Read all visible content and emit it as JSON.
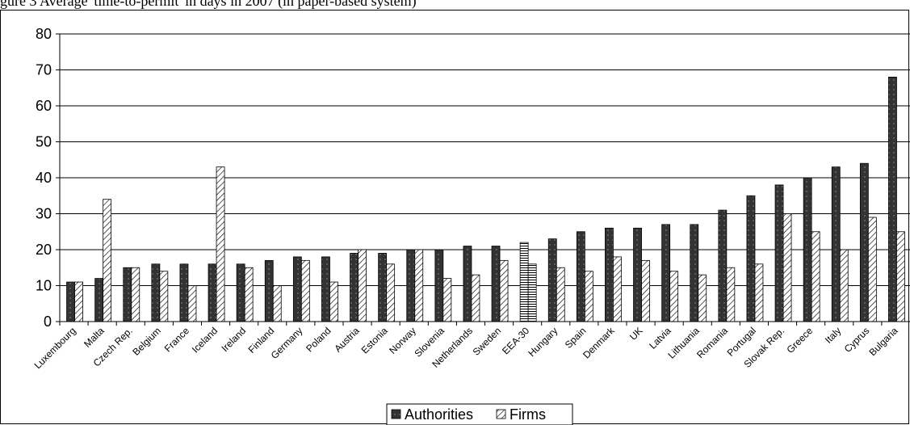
{
  "caption": "gure 3 Average 'time-to-permit' in days in 2007 (in paper-based system)",
  "chart_data": {
    "type": "bar",
    "ylim": [
      0,
      80
    ],
    "yticks": [
      0,
      10,
      20,
      30,
      40,
      50,
      60,
      70,
      80
    ],
    "grid": true,
    "legend_position": "bottom",
    "categories": [
      "Luxembourg",
      "Malta",
      "Czech Rep.",
      "Belgium",
      "France",
      "Iceland",
      "Ireland",
      "Finland",
      "Germany",
      "Poland",
      "Austria",
      "Estonia",
      "Norway",
      "Slovenia",
      "Netherlands",
      "Sweden",
      "EEA-30",
      "Hungary",
      "Spain",
      "Denmark",
      "UK",
      "Latvia",
      "Lithuania",
      "Romania",
      "Portugal",
      "Slovak Rep.",
      "Greece",
      "Italy",
      "Cyprus",
      "Bulgaria"
    ],
    "series": [
      {
        "name": "Authorities",
        "color": "#333333",
        "values": [
          11,
          12,
          15,
          16,
          16,
          16,
          16,
          17,
          18,
          18,
          19,
          19,
          20,
          20,
          21,
          21,
          22,
          23,
          25,
          26,
          26,
          27,
          27,
          31,
          35,
          38,
          40,
          43,
          44,
          68
        ]
      },
      {
        "name": "Firms",
        "color": "#ffffff",
        "values": [
          11,
          34,
          15,
          14,
          10,
          43,
          15,
          10,
          17,
          11,
          20,
          16,
          20,
          12,
          13,
          17,
          16,
          15,
          14,
          18,
          17,
          14,
          13,
          15,
          16,
          30,
          25,
          20,
          29,
          25
        ]
      }
    ],
    "highlight_category": "EEA-30"
  }
}
